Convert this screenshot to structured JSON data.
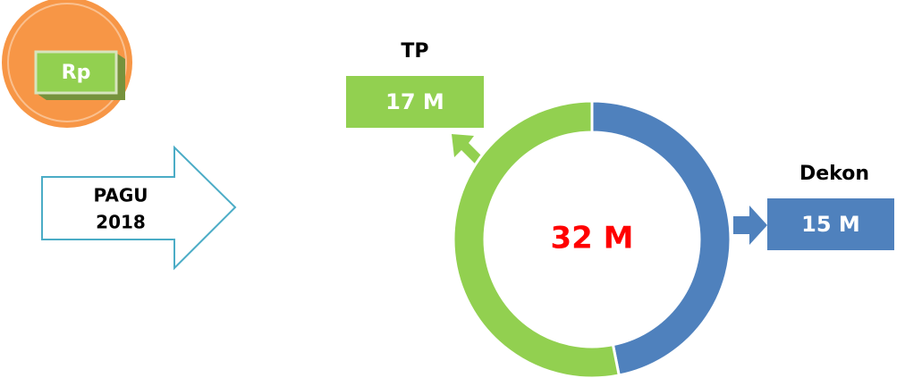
{
  "chart_data": {
    "type": "pie",
    "categories": [
      "Dekon",
      "TP"
    ],
    "values": [
      15,
      17
    ],
    "value_labels": [
      "15 M",
      "17 M"
    ],
    "colors": [
      "#4f81bd",
      "#92d050"
    ],
    "center_label": "32 M",
    "center_color": "#ff0000",
    "icon_label": "Rp",
    "arrow_label": [
      "PAGU",
      "2018"
    ]
  }
}
